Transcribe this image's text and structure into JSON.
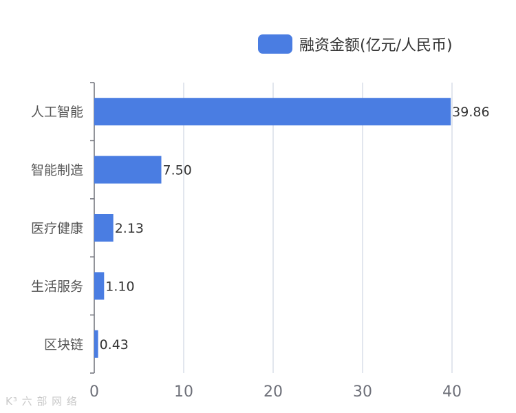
{
  "chart_data": {
    "type": "bar",
    "orientation": "horizontal",
    "categories": [
      "人工智能",
      "智能制造",
      "医疗健康",
      "生活服务",
      "区块链"
    ],
    "series": [
      {
        "name": "融资金额(亿元/人民币)",
        "values": [
          39.86,
          7.5,
          2.13,
          1.1,
          0.43
        ],
        "value_labels": [
          "39.86",
          "7.50",
          "2.13",
          "1.10",
          "0.43"
        ],
        "color": "#4a7de2"
      }
    ],
    "xlim": [
      0,
      40
    ],
    "xticks": [
      "0",
      "10",
      "20",
      "30",
      "40"
    ],
    "grid": true,
    "legend_position": "top-right"
  },
  "watermark": "K³ 六 部 网 络"
}
